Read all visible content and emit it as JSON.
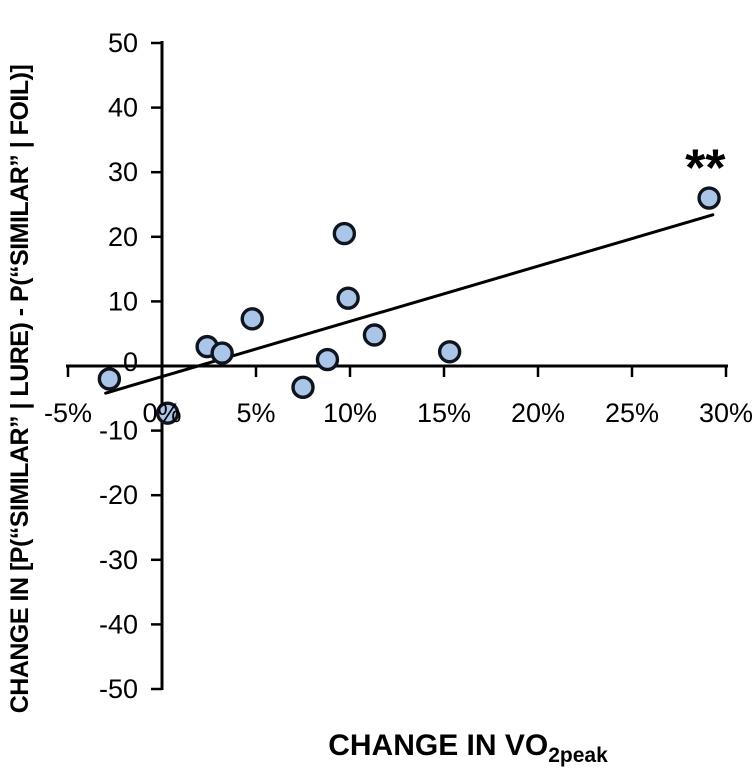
{
  "figure": {
    "xlabel_main": "CHANGE IN VO",
    "xlabel_sub": "2peak"
  },
  "chart_data": {
    "type": "scatter",
    "title": "",
    "xlabel": "CHANGE IN VO2peak",
    "ylabel": "CHANGE IN [P(“SIMILAR” | LURE) - P(“SIMILAR” | FOIL)]",
    "x_unit": "%",
    "xlim": [
      -5,
      30
    ],
    "ylim": [
      -50,
      50
    ],
    "x_ticks": [
      -5,
      0,
      5,
      10,
      15,
      20,
      25,
      30
    ],
    "x_tick_labels": [
      "-5%",
      "0%",
      "5%",
      "10%",
      "15%",
      "20%",
      "25%",
      "30%"
    ],
    "y_ticks": [
      50,
      40,
      30,
      20,
      10,
      0,
      -10,
      -20,
      -30,
      -40,
      -50
    ],
    "y_tick_labels": [
      "50",
      "40",
      "30",
      "20",
      "10",
      "0",
      "-10",
      "-20",
      "-30",
      "-40",
      "-50"
    ],
    "grid": false,
    "legend": false,
    "points": [
      {
        "x": -2.8,
        "y": -2.0
      },
      {
        "x": 0.3,
        "y": -7.3
      },
      {
        "x": 2.4,
        "y": 3.0
      },
      {
        "x": 3.2,
        "y": 2.0
      },
      {
        "x": 4.8,
        "y": 7.3
      },
      {
        "x": 7.5,
        "y": -3.3
      },
      {
        "x": 8.8,
        "y": 1.0
      },
      {
        "x": 9.7,
        "y": 20.5
      },
      {
        "x": 9.9,
        "y": 10.5
      },
      {
        "x": 11.3,
        "y": 4.8
      },
      {
        "x": 15.3,
        "y": 2.2
      },
      {
        "x": 29.1,
        "y": 26.0
      }
    ],
    "trendline": {
      "x1": -3.0,
      "y1": -4.2,
      "x2": 29.3,
      "y2": 23.4
    },
    "annotation": {
      "text": "**",
      "x": 28.9,
      "y": 32
    },
    "colors": {
      "marker_fill": "#a9c5e8",
      "marker_stroke": "#10141c",
      "axis": "#000000",
      "trendline": "#000000"
    }
  }
}
